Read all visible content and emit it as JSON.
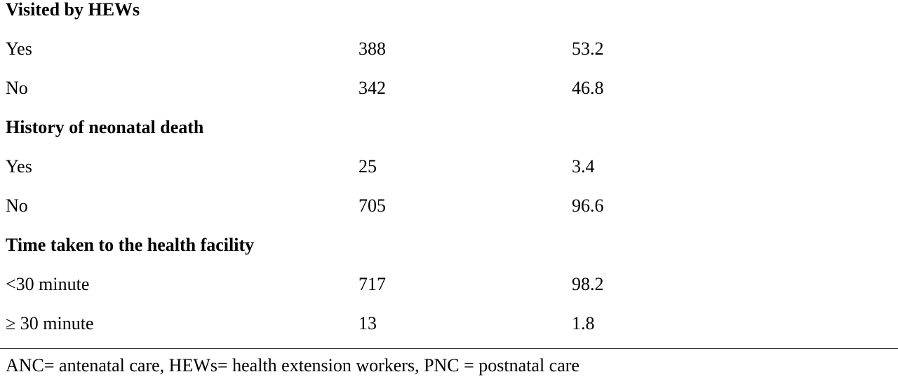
{
  "table": {
    "sections": [
      {
        "title": "Visited by HEWs",
        "rows": [
          [
            "Yes",
            388,
            53.2
          ],
          [
            "No",
            342,
            46.8
          ]
        ]
      },
      {
        "title": "History of neonatal death",
        "rows": [
          [
            "Yes",
            25,
            3.4
          ],
          [
            "No",
            705,
            96.6
          ]
        ]
      },
      {
        "title": "Time taken to the health facility",
        "rows": [
          [
            "<30 minute",
            717,
            98.2
          ],
          [
            "≥ 30 minute",
            13,
            1.8
          ]
        ]
      }
    ]
  },
  "footnote": "ANC= antenatal care, HEWs= health extension workers, PNC = postnatal care"
}
